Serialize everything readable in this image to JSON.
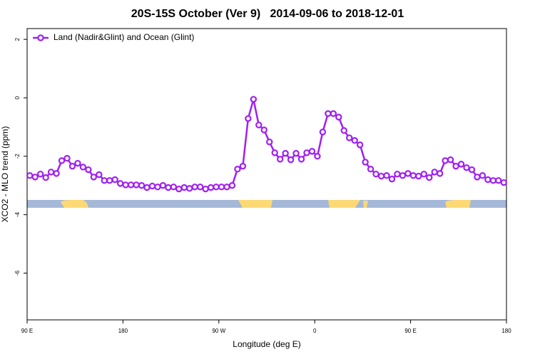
{
  "chart_data": {
    "type": "line",
    "title": "20S-15S October (Ver 9)   2014-09-06 to 2018-12-01",
    "xlabel": "Longitude (deg E)",
    "ylabel": "XCO2 - MLO trend (ppm)",
    "xlim": [
      90,
      540
    ],
    "ylim": [
      -7.6,
      2.37
    ],
    "xticks": [
      {
        "value": 90,
        "label": "90 E"
      },
      180,
      {
        "value": 270,
        "label": "90 W"
      },
      {
        "value": 360,
        "label": "0"
      },
      {
        "value": 450,
        "label": "90 E"
      },
      {
        "value": 540,
        "label": "180"
      }
    ],
    "yticks": [
      -6,
      -4,
      -2,
      0,
      2
    ],
    "legend": "top-left",
    "x": [
      92.5,
      97.5,
      102.5,
      107.5,
      112.5,
      117.5,
      122.5,
      127.5,
      132.5,
      137.5,
      142.5,
      147.5,
      152.5,
      157.5,
      162.5,
      167.5,
      172.5,
      177.5,
      182.5,
      187.5,
      192.5,
      197.5,
      202.5,
      207.5,
      212.5,
      217.5,
      222.5,
      227.5,
      232.5,
      237.5,
      242.5,
      247.5,
      252.5,
      257.5,
      262.5,
      267.5,
      272.5,
      277.5,
      282.5,
      287.5,
      292.5,
      297.5,
      302.5,
      307.5,
      312.5,
      317.5,
      322.5,
      327.5,
      332.5,
      337.5,
      342.5,
      347.5,
      352.5,
      357.5,
      362.5,
      367.5,
      372.5,
      377.5,
      382.5,
      387.5,
      392.5,
      397.5,
      402.5,
      407.5,
      412.5,
      417.5,
      422.5,
      427.5,
      432.5,
      437.5,
      442.5,
      447.5,
      452.5,
      457.5,
      462.5,
      467.5,
      472.5,
      477.5,
      482.5,
      487.5,
      492.5,
      497.5,
      502.5,
      507.5,
      512.5,
      517.5,
      522.5,
      527.5,
      532.5,
      537.5
    ],
    "series": [
      {
        "name": "Land (Nadir&Glint) and Ocean (Glint)",
        "color": "#a020f0",
        "values": [
          -2.66,
          -2.71,
          -2.61,
          -2.73,
          -2.54,
          -2.59,
          -2.15,
          -2.07,
          -2.34,
          -2.24,
          -2.37,
          -2.46,
          -2.71,
          -2.63,
          -2.83,
          -2.83,
          -2.8,
          -2.93,
          -2.98,
          -2.98,
          -2.98,
          -3.0,
          -3.07,
          -3.02,
          -3.05,
          -3.0,
          -3.07,
          -3.05,
          -3.12,
          -3.07,
          -3.1,
          -3.05,
          -3.05,
          -3.12,
          -3.07,
          -3.05,
          -3.05,
          -3.05,
          -3.0,
          -2.44,
          -2.34,
          -0.71,
          -0.05,
          -0.93,
          -1.1,
          -1.51,
          -1.88,
          -2.1,
          -1.9,
          -2.12,
          -1.9,
          -2.1,
          -1.88,
          -1.83,
          -2.0,
          -1.17,
          -0.54,
          -0.54,
          -0.66,
          -1.12,
          -1.37,
          -1.46,
          -1.61,
          -2.2,
          -2.44,
          -2.61,
          -2.68,
          -2.66,
          -2.78,
          -2.61,
          -2.66,
          -2.59,
          -2.66,
          -2.68,
          -2.61,
          -2.73,
          -2.54,
          -2.59,
          -2.15,
          -2.12,
          -2.34,
          -2.27,
          -2.39,
          -2.46,
          -2.71,
          -2.66,
          -2.8,
          -2.83,
          -2.83,
          -2.9
        ]
      }
    ]
  }
}
